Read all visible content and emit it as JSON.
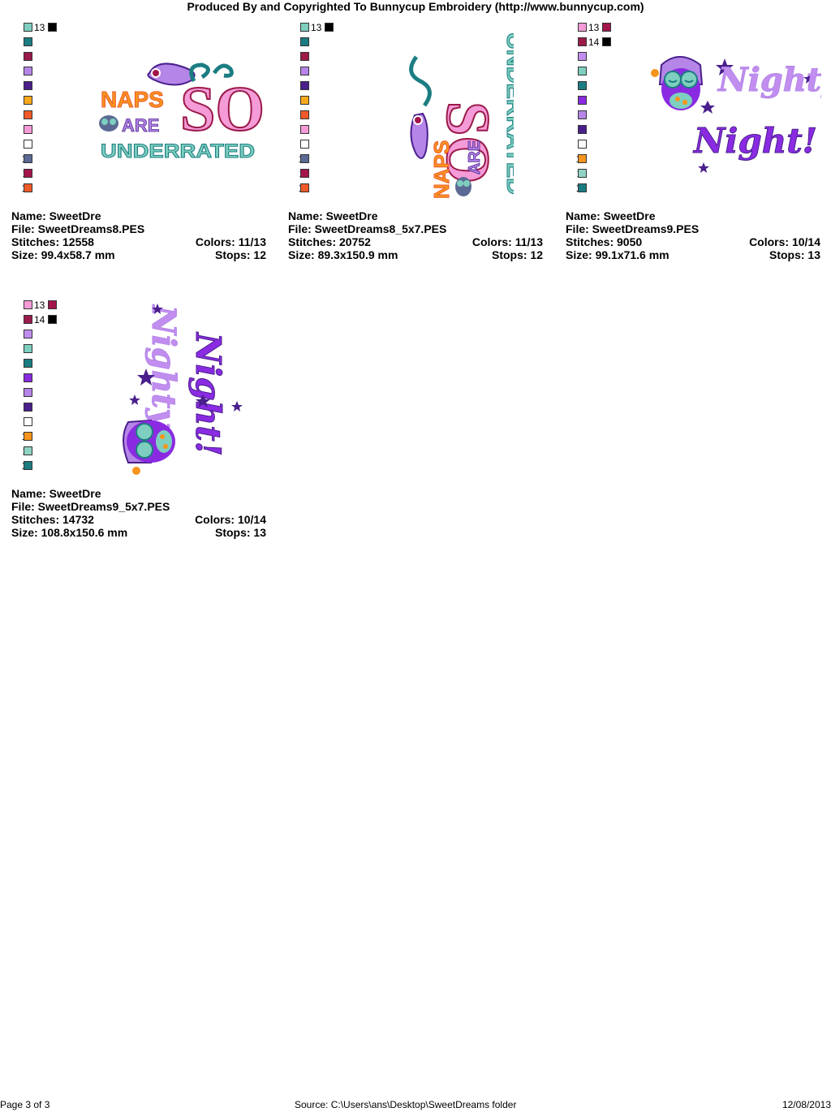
{
  "header": "Produced By and Copyrighted To Bunnycup Embroidery (http://www.bunnycup.com)",
  "designs": [
    {
      "name": "Name: SweetDre",
      "file": "File: SweetDreams8.PES",
      "stitches": "Stitches: 12558",
      "colors": "Colors: 11/13",
      "size": "Size: 99.4x58.7 mm",
      "stops": "Stops: 12",
      "palette": [
        {
          "n": "1",
          "c": "#7ecfbf"
        },
        {
          "n": "2",
          "c": "#1b7d82"
        },
        {
          "n": "3",
          "c": "#9b1a4a"
        },
        {
          "n": "4",
          "c": "#b585e8"
        },
        {
          "n": "5",
          "c": "#4a1f8c"
        },
        {
          "n": "6",
          "c": "#f7a81b"
        },
        {
          "n": "7",
          "c": "#f05a28"
        },
        {
          "n": "8",
          "c": "#f49bd8"
        },
        {
          "n": "9",
          "c": "#ffffff"
        },
        {
          "n": "10",
          "c": "#5b6a94"
        },
        {
          "n": "11",
          "c": "#a3154a"
        },
        {
          "n": "12",
          "c": "#ef5a2a"
        }
      ],
      "extra": [
        {
          "n": "13",
          "c": "#000000"
        }
      ],
      "art": {
        "line1": "NAPS",
        "line2": "ARE",
        "line3": "UNDERRATED",
        "big": "SO"
      }
    },
    {
      "name": "Name: SweetDre",
      "file": "File: SweetDreams8_5x7.PES",
      "stitches": "Stitches: 20752",
      "colors": "Colors: 11/13",
      "size": "Size: 89.3x150.9 mm",
      "stops": "Stops: 12",
      "palette": [
        {
          "n": "1",
          "c": "#7ecfbf"
        },
        {
          "n": "2",
          "c": "#1b7d82"
        },
        {
          "n": "3",
          "c": "#9b1a4a"
        },
        {
          "n": "4",
          "c": "#b585e8"
        },
        {
          "n": "5",
          "c": "#4a1f8c"
        },
        {
          "n": "6",
          "c": "#f7a81b"
        },
        {
          "n": "7",
          "c": "#f05a28"
        },
        {
          "n": "8",
          "c": "#f49bd8"
        },
        {
          "n": "9",
          "c": "#ffffff"
        },
        {
          "n": "10",
          "c": "#5b6a94"
        },
        {
          "n": "11",
          "c": "#a3154a"
        },
        {
          "n": "12",
          "c": "#ef5a2a"
        }
      ],
      "extra": [
        {
          "n": "13",
          "c": "#000000"
        }
      ],
      "art": {
        "line1": "NAPS",
        "line2": "ARE",
        "line3": "UNDERRATED",
        "big": "SO"
      }
    },
    {
      "name": "Name: SweetDre",
      "file": "File: SweetDreams9.PES",
      "stitches": "Stitches: 9050",
      "colors": "Colors: 10/14",
      "size": "Size: 99.1x71.6 mm",
      "stops": "Stops: 13",
      "palette": [
        {
          "n": "1",
          "c": "#f49bd8"
        },
        {
          "n": "2",
          "c": "#9b1a4a"
        },
        {
          "n": "3",
          "c": "#c18ef0"
        },
        {
          "n": "4",
          "c": "#7ecfbf"
        },
        {
          "n": "5",
          "c": "#1b7d82"
        },
        {
          "n": "6",
          "c": "#8a2be2"
        },
        {
          "n": "7",
          "c": "#b585e8"
        },
        {
          "n": "8",
          "c": "#4a1f8c"
        },
        {
          "n": "9",
          "c": "#ffffff"
        },
        {
          "n": "10",
          "c": "#f7941d"
        },
        {
          "n": "11",
          "c": "#8fd3c4"
        },
        {
          "n": "12",
          "c": "#1b7d82"
        }
      ],
      "extra": [
        {
          "n": "13",
          "c": "#a3154a"
        },
        {
          "n": "14",
          "c": "#000000"
        }
      ],
      "art": {
        "line1": "Nighty",
        "line2": "Night!"
      }
    },
    {
      "name": "Name: SweetDre",
      "file": "File: SweetDreams9_5x7.PES",
      "stitches": "Stitches: 14732",
      "colors": "Colors: 10/14",
      "size": "Size: 108.8x150.6 mm",
      "stops": "Stops: 13",
      "palette": [
        {
          "n": "1",
          "c": "#f49bd8"
        },
        {
          "n": "2",
          "c": "#9b1a4a"
        },
        {
          "n": "3",
          "c": "#c18ef0"
        },
        {
          "n": "4",
          "c": "#7ecfbf"
        },
        {
          "n": "5",
          "c": "#1b7d82"
        },
        {
          "n": "6",
          "c": "#8a2be2"
        },
        {
          "n": "7",
          "c": "#b585e8"
        },
        {
          "n": "8",
          "c": "#4a1f8c"
        },
        {
          "n": "9",
          "c": "#ffffff"
        },
        {
          "n": "10",
          "c": "#f7941d"
        },
        {
          "n": "11",
          "c": "#8fd3c4"
        },
        {
          "n": "12",
          "c": "#1b7d82"
        }
      ],
      "extra": [
        {
          "n": "13",
          "c": "#a3154a"
        },
        {
          "n": "14",
          "c": "#000000"
        }
      ],
      "art": {
        "line1": "Nighty",
        "line2": "Night!"
      }
    }
  ],
  "footer": {
    "page": "Page 3 of 3",
    "source": "Source: C:\\Users\\ans\\Desktop\\SweetDreams folder",
    "date": "12/08/2013"
  }
}
